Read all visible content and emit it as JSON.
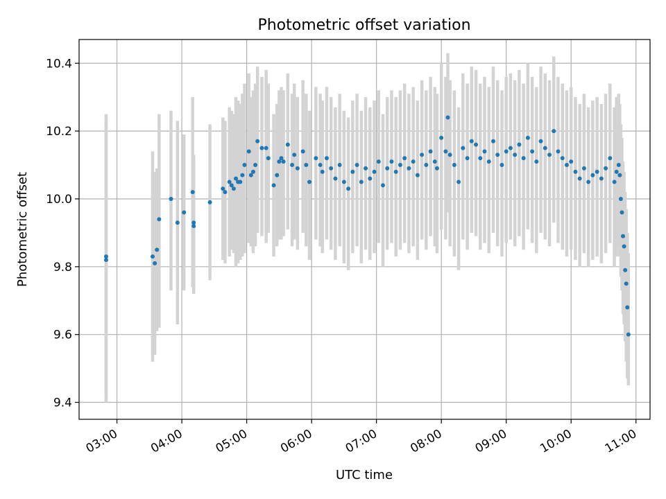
{
  "chart_data": {
    "type": "scatter",
    "title": "Photometric offset variation",
    "xlabel": "UTC time",
    "ylabel": "Photometric offset",
    "x_axis_type": "time",
    "xlim": [
      "02:25",
      "11:13"
    ],
    "ylim": [
      9.35,
      10.47
    ],
    "x_ticks": [
      "03:00",
      "04:00",
      "05:00",
      "06:00",
      "07:00",
      "08:00",
      "09:00",
      "10:00",
      "11:00"
    ],
    "y_ticks": [
      9.4,
      9.6,
      9.8,
      10.0,
      10.2,
      10.4
    ],
    "y_tick_labels": [
      "9.4",
      "9.6",
      "9.8",
      "10.0",
      "10.2",
      "10.4"
    ],
    "grid": true,
    "point_color": "#1f77b4",
    "errorbar_color": "#d3d3d3",
    "series": [
      {
        "x": [
          "02:50",
          "02:50",
          "03:33",
          "03:35",
          "03:37",
          "03:39",
          "03:50",
          "03:56",
          "04:02",
          "04:10",
          "04:11",
          "04:11",
          "04:26",
          "04:38",
          "04:40",
          "04:44",
          "04:46",
          "04:48",
          "04:50",
          "04:52",
          "04:54",
          "04:56",
          "04:58",
          "05:02",
          "05:04",
          "05:06",
          "05:08",
          "05:10",
          "05:14",
          "05:18",
          "05:20",
          "05:25",
          "05:28",
          "05:30",
          "05:32",
          "05:34",
          "05:38",
          "05:42",
          "05:44",
          "05:47",
          "05:52",
          "05:55",
          "05:58",
          "06:04",
          "06:08",
          "06:10",
          "06:14",
          "06:18",
          "06:22",
          "06:26",
          "06:30",
          "06:34",
          "06:38",
          "06:42",
          "06:46",
          "06:50",
          "06:54",
          "06:58",
          "07:02",
          "07:06",
          "07:10",
          "07:14",
          "07:18",
          "07:22",
          "07:26",
          "07:30",
          "07:34",
          "07:38",
          "07:42",
          "07:46",
          "07:50",
          "07:54",
          "07:56",
          "08:00",
          "08:04",
          "08:06",
          "08:08",
          "08:12",
          "08:16",
          "08:20",
          "08:24",
          "08:28",
          "08:32",
          "08:36",
          "08:40",
          "08:44",
          "08:48",
          "08:52",
          "08:56",
          "09:00",
          "09:04",
          "09:08",
          "09:12",
          "09:16",
          "09:20",
          "09:24",
          "09:28",
          "09:32",
          "09:36",
          "09:40",
          "09:44",
          "09:48",
          "09:52",
          "09:56",
          "10:00",
          "10:04",
          "10:08",
          "10:12",
          "10:16",
          "10:20",
          "10:24",
          "10:28",
          "10:32",
          "10:36",
          "10:40",
          "10:42",
          "10:44",
          "10:45",
          "10:46",
          "10:47",
          "10:48",
          "10:49",
          "10:50",
          "10:51",
          "10:52",
          "10:53"
        ],
        "y": [
          9.82,
          9.83,
          9.83,
          9.81,
          9.85,
          9.94,
          10.0,
          9.93,
          9.96,
          10.02,
          9.92,
          9.93,
          9.99,
          10.03,
          10.02,
          10.05,
          10.04,
          10.03,
          10.06,
          10.05,
          10.05,
          10.07,
          10.1,
          10.14,
          10.07,
          10.08,
          10.1,
          10.17,
          10.15,
          10.15,
          10.12,
          10.04,
          10.07,
          10.11,
          10.12,
          10.11,
          10.16,
          10.1,
          10.13,
          10.09,
          10.14,
          10.1,
          10.05,
          10.12,
          10.1,
          10.08,
          10.12,
          10.09,
          10.06,
          10.1,
          10.05,
          10.03,
          10.08,
          10.1,
          10.05,
          10.09,
          10.06,
          10.08,
          10.11,
          10.04,
          10.09,
          10.11,
          10.08,
          10.1,
          10.12,
          10.09,
          10.11,
          10.07,
          10.13,
          10.1,
          10.14,
          10.11,
          10.09,
          10.18,
          10.14,
          10.24,
          10.13,
          10.1,
          10.05,
          10.15,
          10.12,
          10.17,
          10.16,
          10.12,
          10.14,
          10.11,
          10.17,
          10.13,
          10.1,
          10.14,
          10.15,
          10.13,
          10.16,
          10.12,
          10.18,
          10.14,
          10.11,
          10.17,
          10.15,
          10.13,
          10.2,
          10.14,
          10.12,
          10.1,
          10.11,
          10.08,
          10.06,
          10.09,
          10.05,
          10.07,
          10.08,
          10.06,
          10.09,
          10.12,
          10.05,
          10.08,
          10.1,
          10.07,
          10.0,
          9.96,
          9.89,
          9.86,
          9.79,
          9.75,
          9.68,
          9.6
        ],
        "err_low": [
          9.4,
          9.41,
          9.52,
          9.54,
          9.61,
          9.62,
          9.73,
          9.63,
          9.73,
          9.74,
          9.72,
          9.73,
          9.76,
          9.82,
          9.81,
          9.83,
          9.85,
          9.84,
          9.8,
          9.81,
          9.82,
          9.83,
          9.84,
          9.87,
          9.86,
          9.84,
          9.86,
          9.9,
          9.89,
          9.87,
          9.9,
          9.83,
          9.86,
          9.88,
          9.88,
          9.89,
          9.91,
          9.86,
          9.88,
          9.85,
          9.9,
          9.86,
          9.82,
          9.88,
          9.86,
          9.84,
          9.88,
          9.85,
          9.82,
          9.86,
          9.81,
          9.79,
          9.84,
          9.86,
          9.81,
          9.85,
          9.82,
          9.84,
          9.87,
          9.8,
          9.85,
          9.87,
          9.83,
          9.85,
          9.87,
          9.84,
          9.86,
          9.82,
          9.88,
          9.85,
          9.89,
          9.86,
          9.84,
          9.91,
          9.88,
          9.96,
          9.86,
          9.83,
          9.79,
          9.88,
          9.85,
          9.9,
          9.89,
          9.85,
          9.87,
          9.84,
          9.9,
          9.86,
          9.83,
          9.87,
          9.88,
          9.86,
          9.89,
          9.85,
          9.91,
          9.87,
          9.84,
          9.9,
          9.88,
          9.86,
          9.93,
          9.87,
          9.85,
          9.83,
          9.85,
          9.82,
          9.8,
          9.84,
          9.8,
          9.82,
          9.83,
          9.81,
          9.84,
          9.87,
          9.8,
          9.83,
          9.86,
          9.83,
          9.77,
          9.73,
          9.66,
          9.63,
          9.58,
          9.52,
          9.47,
          9.45
        ],
        "err_high": [
          10.24,
          10.25,
          10.14,
          10.08,
          10.09,
          10.25,
          10.26,
          10.23,
          10.19,
          10.3,
          10.12,
          10.13,
          10.22,
          10.24,
          10.23,
          10.27,
          10.26,
          10.25,
          10.3,
          10.29,
          10.28,
          10.31,
          10.34,
          10.37,
          10.3,
          10.32,
          10.34,
          10.39,
          10.36,
          10.38,
          10.34,
          10.25,
          10.28,
          10.32,
          10.33,
          10.32,
          10.37,
          10.31,
          10.34,
          10.3,
          10.35,
          10.31,
          10.26,
          10.33,
          10.31,
          10.29,
          10.33,
          10.3,
          10.27,
          10.31,
          10.26,
          10.24,
          10.29,
          10.31,
          10.26,
          10.3,
          10.27,
          10.29,
          10.32,
          10.25,
          10.3,
          10.32,
          10.3,
          10.32,
          10.34,
          10.31,
          10.33,
          10.29,
          10.35,
          10.32,
          10.36,
          10.33,
          10.31,
          10.4,
          10.36,
          10.43,
          10.35,
          10.32,
          10.27,
          10.37,
          10.34,
          10.39,
          10.38,
          10.34,
          10.36,
          10.33,
          10.39,
          10.35,
          10.32,
          10.36,
          10.37,
          10.35,
          10.38,
          10.34,
          10.4,
          10.36,
          10.33,
          10.39,
          10.37,
          10.35,
          10.42,
          10.36,
          10.34,
          10.32,
          10.33,
          10.3,
          10.28,
          10.31,
          10.27,
          10.29,
          10.3,
          10.28,
          10.31,
          10.34,
          10.27,
          10.3,
          10.31,
          10.28,
          10.22,
          10.18,
          10.11,
          10.08,
          10.02,
          9.97,
          9.9,
          9.84
        ]
      }
    ]
  }
}
